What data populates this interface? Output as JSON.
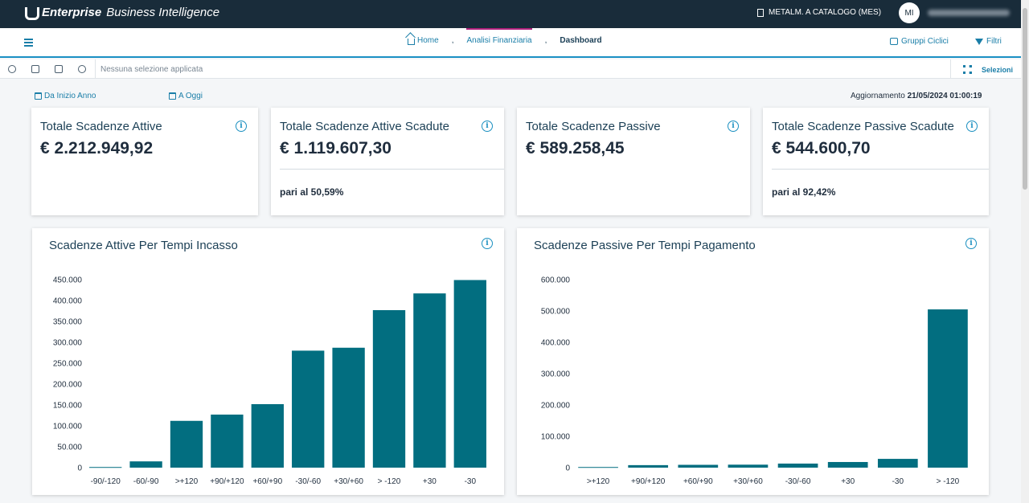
{
  "app": {
    "brand_bold": "Enterprise",
    "brand_rest": "Business Intelligence"
  },
  "header": {
    "company": "METALM. A CATALOGO (MES)",
    "avatar_initials": "MI"
  },
  "breadcrumb": {
    "home": "Home",
    "analisi": "Analisi Finanziaria",
    "dashboard": "Dashboard",
    "separator": ","
  },
  "nav": {
    "gruppi_ciclici": "Gruppi Ciclici",
    "filtri": "Filtri"
  },
  "selection": {
    "empty_text": "Nessuna selezione applicata",
    "button": "Selezioni"
  },
  "dates": {
    "from": "Da Inizio Anno",
    "to": "A Oggi"
  },
  "update": {
    "label": "Aggiornamento",
    "value": "21/05/2024 01:00:19"
  },
  "kpis": [
    {
      "title": "Totale Scadenze Attive",
      "value": "€ 2.212.949,92",
      "note": ""
    },
    {
      "title": "Totale Scadenze Attive Scadute",
      "value": "€ 1.119.607,30",
      "note": "pari al 50,59%"
    },
    {
      "title": "Totale Scadenze Passive",
      "value": "€ 589.258,45",
      "note": ""
    },
    {
      "title": "Totale Scadenze Passive Scadute",
      "value": "€ 544.600,70",
      "note": "pari al 92,42%"
    }
  ],
  "info_glyph": "i",
  "colors": {
    "bar": "#026e80",
    "accent": "#1a7ea8",
    "header": "#192c3a"
  },
  "chart_data": [
    {
      "type": "bar",
      "title": "Scadenze Attive Per Tempi Incasso",
      "categories": [
        "-90/-120",
        "-60/-90",
        ">+120",
        "+90/+120",
        "+60/+90",
        "-30/-60",
        "+30/+60",
        "> -120",
        "+30",
        "-30"
      ],
      "values": [
        1500,
        15000,
        112000,
        127000,
        152000,
        280000,
        287000,
        377000,
        417000,
        449000
      ],
      "ylim": [
        0,
        450000
      ],
      "yticks": [
        "0",
        "50.000",
        "100.000",
        "150.000",
        "200.000",
        "250.000",
        "300.000",
        "350.000",
        "400.000",
        "450.000"
      ],
      "xlabel": "",
      "ylabel": ""
    },
    {
      "type": "bar",
      "title": "Scadenze Passive Per Tempi Pagamento",
      "categories": [
        ">+120",
        "+90/+120",
        "+60/+90",
        "+30/+60",
        "-30/-60",
        "+30",
        "-30",
        "> -120"
      ],
      "values": [
        2000,
        8000,
        9000,
        9500,
        13000,
        18000,
        28000,
        505000
      ],
      "ylim": [
        0,
        600000
      ],
      "yticks": [
        "0",
        "100.000",
        "200.000",
        "300.000",
        "400.000",
        "500.000",
        "600.000"
      ],
      "xlabel": "",
      "ylabel": ""
    }
  ]
}
